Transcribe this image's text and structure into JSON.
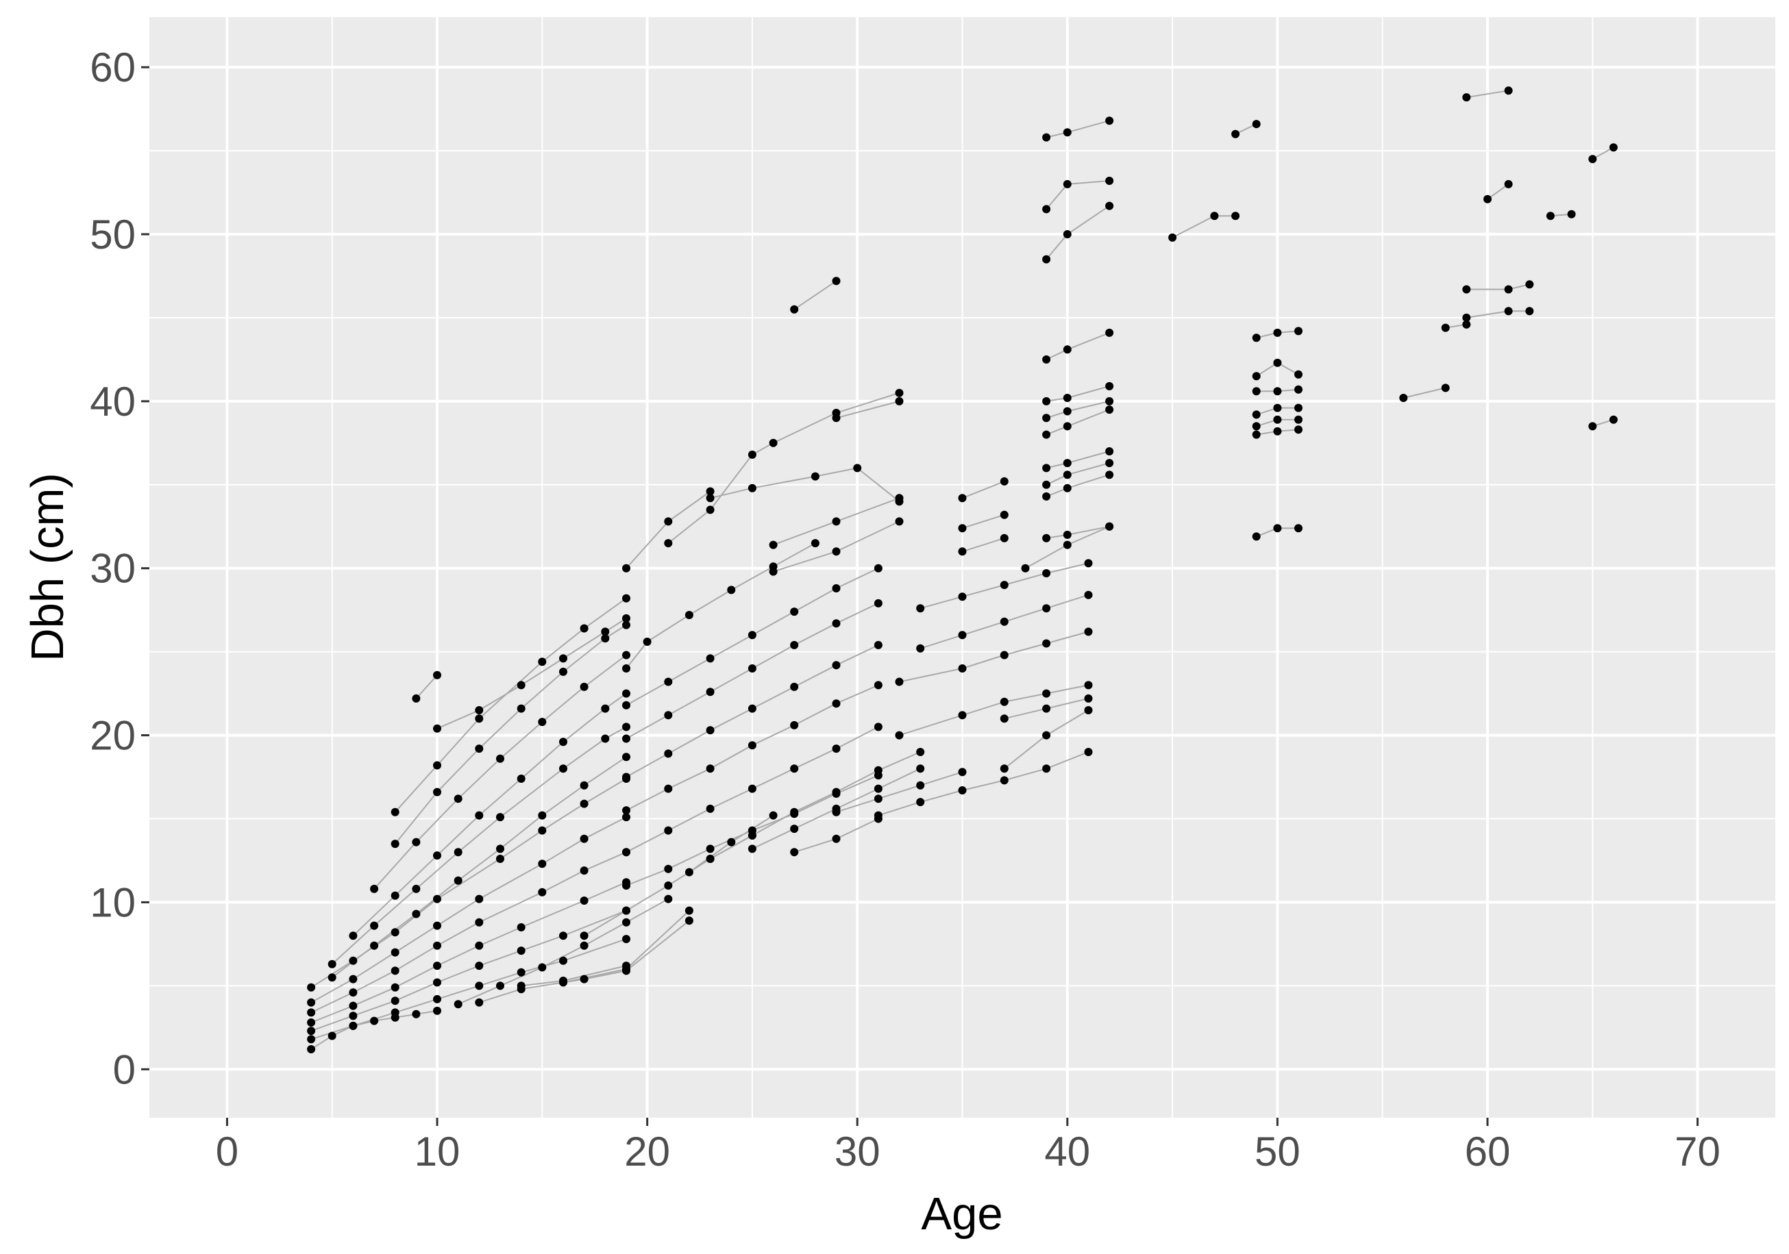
{
  "chart_data": {
    "type": "line",
    "xlabel": "Age",
    "ylabel": "Dbh (cm)",
    "xlim": [
      -3.7,
      73.7
    ],
    "ylim": [
      -2.9,
      63.0
    ],
    "x_ticks": [
      0,
      10,
      20,
      30,
      40,
      50,
      60,
      70
    ],
    "y_ticks": [
      0,
      10,
      20,
      30,
      40,
      50,
      60
    ],
    "grid": true,
    "legend": "none",
    "colors": {
      "panel": "#ebebeb",
      "grid": "#ffffff",
      "points": "#000000",
      "lines": "#a9a9a9"
    },
    "series": [
      {
        "x": [
          4,
          5,
          6,
          7,
          8,
          9,
          10
        ],
        "y": [
          1.2,
          2.0,
          2.6,
          2.9,
          3.1,
          3.3,
          3.5
        ]
      },
      {
        "x": [
          4,
          6,
          8,
          10,
          12,
          14,
          16,
          19
        ],
        "y": [
          1.8,
          2.6,
          3.4,
          4.2,
          5.0,
          5.8,
          6.5,
          7.8
        ]
      },
      {
        "x": [
          4,
          6,
          8,
          10,
          12,
          14,
          16,
          19
        ],
        "y": [
          2.3,
          3.2,
          4.1,
          5.2,
          6.2,
          7.1,
          8.0,
          9.5
        ]
      },
      {
        "x": [
          4,
          6,
          8,
          10,
          12,
          14,
          17,
          19
        ],
        "y": [
          2.8,
          3.8,
          4.9,
          6.2,
          7.4,
          8.5,
          10.1,
          11.2
        ]
      },
      {
        "x": [
          4,
          6,
          8,
          10,
          12,
          15,
          17,
          19
        ],
        "y": [
          3.4,
          4.6,
          5.9,
          7.4,
          8.8,
          10.6,
          11.9,
          13.0
        ]
      },
      {
        "x": [
          4,
          6,
          8,
          10,
          12,
          15,
          17,
          19
        ],
        "y": [
          4.0,
          5.4,
          7.0,
          8.6,
          10.2,
          12.3,
          13.8,
          15.1
        ]
      },
      {
        "x": [
          4,
          6,
          8,
          10,
          13,
          15,
          17,
          19
        ],
        "y": [
          4.9,
          6.5,
          8.2,
          10.2,
          12.6,
          14.3,
          15.9,
          17.4
        ]
      },
      {
        "x": [
          5,
          7,
          9,
          11,
          13,
          15,
          17,
          19
        ],
        "y": [
          5.5,
          7.4,
          9.3,
          11.3,
          13.2,
          15.2,
          17.0,
          18.7
        ]
      },
      {
        "x": [
          5,
          7,
          9,
          11,
          13,
          16,
          18,
          19
        ],
        "y": [
          6.3,
          8.6,
          10.8,
          13.0,
          15.1,
          18.0,
          19.8,
          20.5
        ]
      },
      {
        "x": [
          6,
          8,
          10,
          12,
          14,
          16,
          18,
          19
        ],
        "y": [
          8.0,
          10.4,
          12.8,
          15.2,
          17.4,
          19.6,
          21.6,
          22.5
        ]
      },
      {
        "x": [
          7,
          9,
          11,
          13,
          15,
          17,
          19
        ],
        "y": [
          10.8,
          13.6,
          16.2,
          18.6,
          20.8,
          22.9,
          24.8
        ]
      },
      {
        "x": [
          8,
          10,
          12,
          14,
          16,
          18,
          19
        ],
        "y": [
          13.5,
          16.6,
          19.2,
          21.6,
          23.8,
          25.8,
          26.6
        ]
      },
      {
        "x": [
          8,
          10,
          12,
          15,
          17,
          19
        ],
        "y": [
          15.4,
          18.2,
          21.0,
          24.4,
          26.4,
          28.2
        ]
      },
      {
        "x": [
          9,
          10
        ],
        "y": [
          22.2,
          23.6
        ]
      },
      {
        "x": [
          10,
          12,
          14,
          16,
          18,
          19
        ],
        "y": [
          20.4,
          21.5,
          23.0,
          24.6,
          26.2,
          27.0
        ]
      },
      {
        "x": [
          11,
          13,
          15,
          17,
          19,
          21
        ],
        "y": [
          3.9,
          5.0,
          6.1,
          7.4,
          8.8,
          10.2
        ]
      },
      {
        "x": [
          12,
          14,
          17,
          19,
          22
        ],
        "y": [
          4.0,
          4.8,
          5.4,
          5.9,
          8.9
        ]
      },
      {
        "x": [
          14,
          16,
          19
        ],
        "y": [
          5.0,
          5.3,
          6.2
        ]
      },
      {
        "x": [
          16,
          19,
          22
        ],
        "y": [
          5.2,
          6.0,
          9.5
        ]
      },
      {
        "x": [
          17,
          19,
          21,
          23,
          25
        ],
        "y": [
          8.0,
          9.5,
          11.0,
          12.6,
          14.0
        ]
      },
      {
        "x": [
          19,
          21,
          23,
          25,
          27,
          29,
          31
        ],
        "y": [
          11.0,
          12.0,
          13.2,
          14.3,
          15.3,
          16.5,
          17.6
        ]
      },
      {
        "x": [
          19,
          21,
          23,
          25,
          27,
          29,
          31
        ],
        "y": [
          13.0,
          14.3,
          15.6,
          16.8,
          18.0,
          19.2,
          20.5
        ]
      },
      {
        "x": [
          19,
          21,
          23,
          25,
          27,
          29,
          31
        ],
        "y": [
          15.5,
          16.8,
          18.0,
          19.4,
          20.6,
          21.9,
          23.0
        ]
      },
      {
        "x": [
          19,
          21,
          23,
          25,
          27,
          29,
          31
        ],
        "y": [
          17.5,
          18.9,
          20.3,
          21.6,
          22.9,
          24.2,
          25.4
        ]
      },
      {
        "x": [
          19,
          21,
          23,
          25,
          27,
          29,
          31
        ],
        "y": [
          19.8,
          21.2,
          22.6,
          24.0,
          25.4,
          26.7,
          27.9
        ]
      },
      {
        "x": [
          19,
          21,
          23,
          25,
          27,
          29,
          31
        ],
        "y": [
          21.8,
          23.2,
          24.6,
          26.0,
          27.4,
          28.8,
          30.0
        ]
      },
      {
        "x": [
          19,
          20,
          22,
          24,
          26,
          28
        ],
        "y": [
          24.0,
          25.6,
          27.2,
          28.7,
          30.1,
          31.5
        ]
      },
      {
        "x": [
          19,
          21,
          23
        ],
        "y": [
          30.0,
          32.8,
          34.6
        ]
      },
      {
        "x": [
          21,
          23,
          25,
          26,
          29,
          32
        ],
        "y": [
          31.5,
          33.5,
          36.8,
          37.5,
          39.3,
          40.5
        ]
      },
      {
        "x": [
          23,
          25,
          28,
          30,
          32
        ],
        "y": [
          34.2,
          34.8,
          35.5,
          36.0,
          34.0
        ]
      },
      {
        "x": [
          22,
          24,
          26
        ],
        "y": [
          11.8,
          13.6,
          15.2
        ]
      },
      {
        "x": [
          23,
          25,
          27,
          29,
          31,
          33
        ],
        "y": [
          12.6,
          14.0,
          15.4,
          16.6,
          17.9,
          19.0
        ]
      },
      {
        "x": [
          25,
          27,
          29,
          31,
          33
        ],
        "y": [
          13.2,
          14.4,
          15.6,
          16.8,
          18.0
        ]
      },
      {
        "x": [
          27,
          29,
          31
        ],
        "y": [
          13.0,
          13.8,
          15.0
        ]
      },
      {
        "x": [
          27,
          29
        ],
        "y": [
          45.5,
          47.2
        ]
      },
      {
        "x": [
          29,
          32
        ],
        "y": [
          39.0,
          40.0
        ]
      },
      {
        "x": [
          26,
          29,
          32
        ],
        "y": [
          31.4,
          32.8,
          34.2
        ]
      },
      {
        "x": [
          26,
          29,
          32
        ],
        "y": [
          29.8,
          31.0,
          32.8
        ]
      },
      {
        "x": [
          29,
          31,
          33,
          35
        ],
        "y": [
          15.4,
          16.2,
          17.0,
          17.8
        ]
      },
      {
        "x": [
          31,
          33,
          35,
          37,
          39,
          41
        ],
        "y": [
          15.2,
          16.0,
          16.7,
          17.3,
          18.0,
          19.0
        ]
      },
      {
        "x": [
          32,
          35,
          37,
          39,
          41
        ],
        "y": [
          20.0,
          21.2,
          22.0,
          22.5,
          23.0
        ]
      },
      {
        "x": [
          32,
          35,
          37,
          39,
          41
        ],
        "y": [
          23.2,
          24.0,
          24.8,
          25.5,
          26.2
        ]
      },
      {
        "x": [
          33,
          35,
          37,
          39,
          41
        ],
        "y": [
          25.2,
          26.0,
          26.8,
          27.6,
          28.4
        ]
      },
      {
        "x": [
          33,
          35,
          37,
          39,
          41
        ],
        "y": [
          27.6,
          28.3,
          29.0,
          29.7,
          30.3
        ]
      },
      {
        "x": [
          35,
          37
        ],
        "y": [
          34.2,
          35.2
        ]
      },
      {
        "x": [
          35,
          37
        ],
        "y": [
          32.4,
          33.2
        ]
      },
      {
        "x": [
          35,
          37
        ],
        "y": [
          31.0,
          31.8
        ]
      },
      {
        "x": [
          37,
          39,
          41
        ],
        "y": [
          21.0,
          21.6,
          22.2
        ]
      },
      {
        "x": [
          37,
          39,
          41
        ],
        "y": [
          18.0,
          20.0,
          21.5
        ]
      },
      {
        "x": [
          38,
          40,
          42
        ],
        "y": [
          30.0,
          31.4,
          32.5
        ]
      },
      {
        "x": [
          39,
          40,
          42
        ],
        "y": [
          55.8,
          56.1,
          56.8
        ]
      },
      {
        "x": [
          39,
          40,
          42
        ],
        "y": [
          51.5,
          53.0,
          53.2
        ]
      },
      {
        "x": [
          39,
          40,
          42
        ],
        "y": [
          48.5,
          50.0,
          51.7
        ]
      },
      {
        "x": [
          39,
          40,
          42
        ],
        "y": [
          42.5,
          43.1,
          44.1
        ]
      },
      {
        "x": [
          39,
          40,
          42
        ],
        "y": [
          40.0,
          40.2,
          40.9
        ]
      },
      {
        "x": [
          39,
          40,
          42
        ],
        "y": [
          39.0,
          39.4,
          40.0
        ]
      },
      {
        "x": [
          39,
          40,
          42
        ],
        "y": [
          38.0,
          38.5,
          39.5
        ]
      },
      {
        "x": [
          39,
          40,
          42
        ],
        "y": [
          36.0,
          36.3,
          37.0
        ]
      },
      {
        "x": [
          39,
          40,
          42
        ],
        "y": [
          35.0,
          35.6,
          36.3
        ]
      },
      {
        "x": [
          39,
          40,
          42
        ],
        "y": [
          34.3,
          34.8,
          35.6
        ]
      },
      {
        "x": [
          39,
          40,
          42
        ],
        "y": [
          31.8,
          32.0,
          32.5
        ]
      },
      {
        "x": [
          45,
          47,
          48
        ],
        "y": [
          49.8,
          51.1,
          51.1
        ]
      },
      {
        "x": [
          48,
          49
        ],
        "y": [
          56.0,
          56.6
        ]
      },
      {
        "x": [
          49,
          50,
          51
        ],
        "y": [
          43.8,
          44.1,
          44.2
        ]
      },
      {
        "x": [
          49,
          50,
          51
        ],
        "y": [
          41.5,
          42.3,
          41.6
        ]
      },
      {
        "x": [
          49,
          50,
          51
        ],
        "y": [
          40.6,
          40.6,
          40.7
        ]
      },
      {
        "x": [
          49,
          50,
          51
        ],
        "y": [
          39.2,
          39.6,
          39.6
        ]
      },
      {
        "x": [
          49,
          50,
          51
        ],
        "y": [
          38.5,
          38.9,
          38.9
        ]
      },
      {
        "x": [
          49,
          50,
          51
        ],
        "y": [
          38.0,
          38.2,
          38.3
        ]
      },
      {
        "x": [
          49,
          50,
          51
        ],
        "y": [
          31.9,
          32.4,
          32.4
        ]
      },
      {
        "x": [
          56,
          58
        ],
        "y": [
          40.2,
          40.8
        ]
      },
      {
        "x": [
          58,
          59
        ],
        "y": [
          44.4,
          44.6
        ]
      },
      {
        "x": [
          59,
          61,
          62
        ],
        "y": [
          45.0,
          45.4,
          45.4
        ]
      },
      {
        "x": [
          59,
          61,
          62
        ],
        "y": [
          46.7,
          46.7,
          47.0
        ]
      },
      {
        "x": [
          59,
          61
        ],
        "y": [
          58.2,
          58.6
        ]
      },
      {
        "x": [
          60,
          61
        ],
        "y": [
          52.1,
          53.0
        ]
      },
      {
        "x": [
          63,
          64
        ],
        "y": [
          51.1,
          51.2
        ]
      },
      {
        "x": [
          65,
          66
        ],
        "y": [
          54.5,
          55.2
        ]
      },
      {
        "x": [
          65,
          66
        ],
        "y": [
          38.5,
          38.9
        ]
      }
    ]
  }
}
